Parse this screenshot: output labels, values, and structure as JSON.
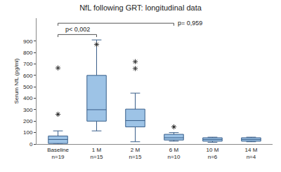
{
  "chart_data": {
    "type": "box",
    "title": "NfL following GRT: longitudinal data",
    "y_label": "Serum NfL (pg/ml)",
    "categories": [
      "Baseline\nn=19",
      "1 M\nn=15",
      "2 M\nn=15",
      "6 M\nn=10",
      "10 M\nn=6",
      "14 M\nn=4"
    ],
    "series": [
      {
        "color": "#9dc3e6",
        "q1": [
          5,
          200,
          150,
          35,
          25,
          25
        ],
        "median": [
          40,
          300,
          205,
          55,
          40,
          40
        ],
        "q3": [
          70,
          600,
          305,
          85,
          55,
          55
        ],
        "lowerfence": [
          0,
          115,
          20,
          25,
          15,
          20
        ],
        "upperfence": [
          115,
          910,
          445,
          100,
          60,
          60
        ],
        "outliers": [
          [
            260,
            665
          ],
          [
            870
          ],
          [
            660,
            720
          ],
          [
            150
          ],
          [],
          []
        ],
        "marker": "asterisk"
      }
    ],
    "annotations": [
      {
        "text": "p< 0,002",
        "from": 0,
        "to": 1
      },
      {
        "text": "p= 0,959",
        "from": 0,
        "to": 3
      }
    ],
    "ylim": [
      0,
      1100
    ],
    "yticks": [
      0,
      100,
      200,
      300,
      400,
      500,
      600,
      700,
      800,
      900
    ],
    "grid": false
  }
}
